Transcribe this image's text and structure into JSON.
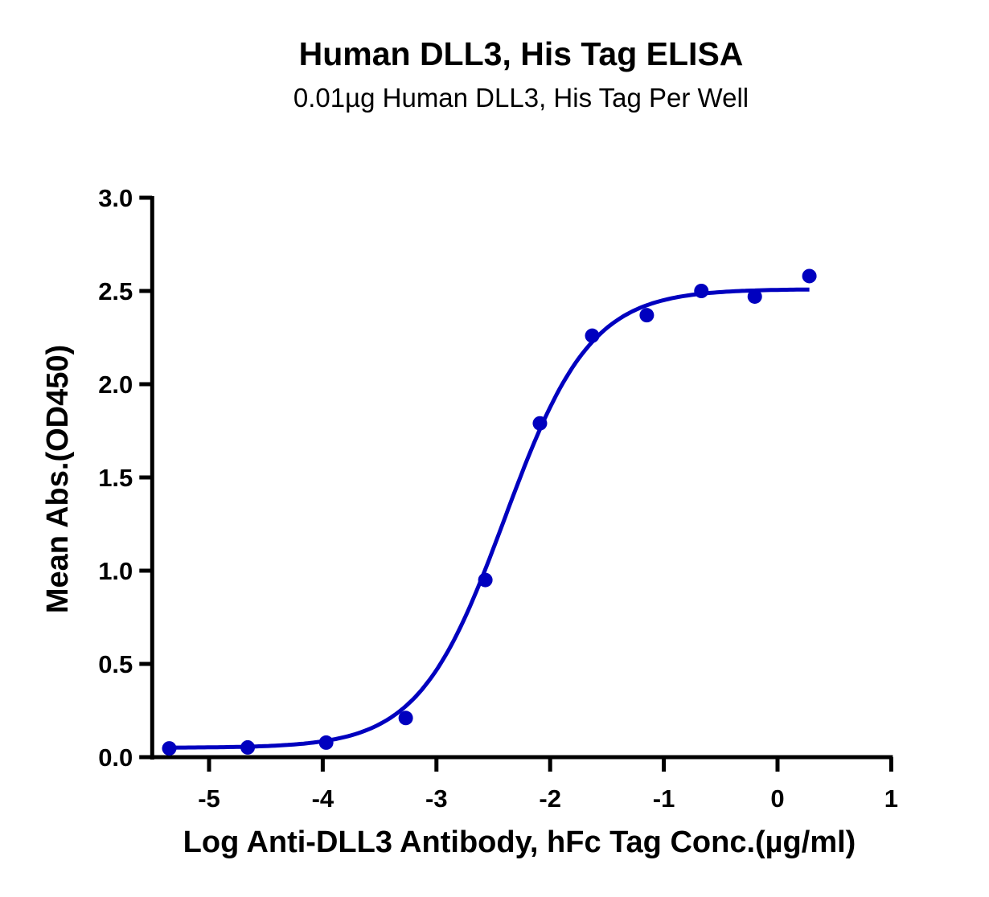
{
  "title": "Human DLL3, His Tag ELISA",
  "subtitle": "0.01µg Human DLL3, His Tag Per Well",
  "xlabel": "Log Anti-DLL3 Antibody, hFc Tag Conc.(µg/ml)",
  "ylabel": "Mean Abs.(OD450)",
  "colors": {
    "series": "#0000bf",
    "axis": "#000000"
  },
  "chart_data": {
    "type": "scatter",
    "title": "Human DLL3, His Tag ELISA",
    "subtitle": "0.01µg Human DLL3, His Tag Per Well",
    "xlabel": "Log Anti-DLL3 Antibody, hFc Tag Conc.(µg/ml)",
    "ylabel": "Mean Abs.(OD450)",
    "xlim": [
      -5.5,
      1
    ],
    "ylim": [
      0,
      3.0
    ],
    "xticks": [
      "-5",
      "-4",
      "-3",
      "-2",
      "-1",
      "0",
      "1"
    ],
    "yticks": [
      "0.0",
      "0.5",
      "1.0",
      "1.5",
      "2.0",
      "2.5",
      "3.0"
    ],
    "grid": false,
    "legend": null,
    "series": [
      {
        "name": "Human DLL3, His Tag",
        "x": [
          -5.35,
          -4.66,
          -3.97,
          -3.27,
          -2.57,
          -2.09,
          -1.63,
          -1.15,
          -0.67,
          -0.2,
          0.28
        ],
        "y": [
          0.047,
          0.052,
          0.078,
          0.21,
          0.95,
          1.79,
          2.26,
          2.37,
          2.5,
          2.47,
          2.58
        ]
      }
    ],
    "fit": {
      "type": "4PL sigmoid",
      "bottom": 0.05,
      "top": 2.51,
      "logEC50": -2.4,
      "hill": 1.15,
      "x_range": [
        -5.35,
        0.28
      ]
    }
  }
}
